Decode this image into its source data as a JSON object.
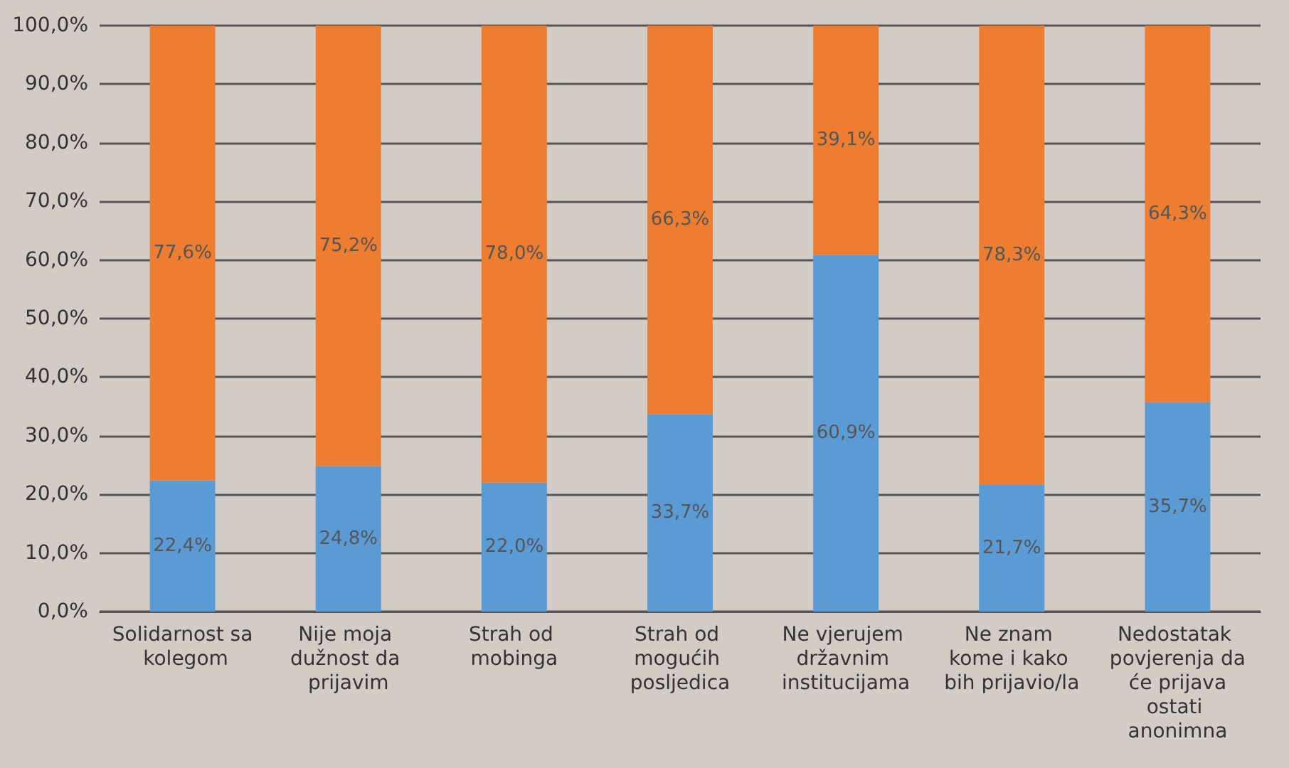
{
  "chart_data": {
    "type": "bar",
    "stacked": true,
    "categories": [
      "Solidarnost sa kolegom",
      "Nije moja dužnost da prijavim",
      "Strah od mobinga",
      "Strah od mogućih posljedica",
      "Ne vjerujem državnim institucijama",
      "Ne znam kome i kako bih prijavio/la",
      "Nedostatak povjerenja da će prijava ostati anonimna"
    ],
    "series": [
      {
        "color": "#5b9bd5",
        "values": [
          22.4,
          24.8,
          22.0,
          33.7,
          60.9,
          21.7,
          35.7
        ],
        "value_labels": [
          "22,4%",
          "24,8%",
          "22,0%",
          "33,7%",
          "60,9%",
          "21,7%",
          "35,7%"
        ]
      },
      {
        "color": "#ed7d31",
        "values": [
          77.6,
          75.2,
          78.0,
          66.3,
          39.1,
          78.3,
          64.3
        ],
        "value_labels": [
          "77,6%",
          "75,2%",
          "78,0%",
          "66,3%",
          "39,1%",
          "78,3%",
          "64,3%"
        ]
      }
    ],
    "ylim": [
      0,
      100
    ],
    "yticks": [
      {
        "value": 0,
        "label": "0,0%"
      },
      {
        "value": 10,
        "label": "10,0%"
      },
      {
        "value": 20,
        "label": "20,0%"
      },
      {
        "value": 30,
        "label": "30,0%"
      },
      {
        "value": 40,
        "label": "40,0%"
      },
      {
        "value": 50,
        "label": "50,0%"
      },
      {
        "value": 60,
        "label": "60,0%"
      },
      {
        "value": 70,
        "label": "70,0%"
      },
      {
        "value": 80,
        "label": "80,0%"
      },
      {
        "value": 90,
        "label": "90,0%"
      },
      {
        "value": 100,
        "label": "100,0%"
      }
    ],
    "grid": "y"
  }
}
